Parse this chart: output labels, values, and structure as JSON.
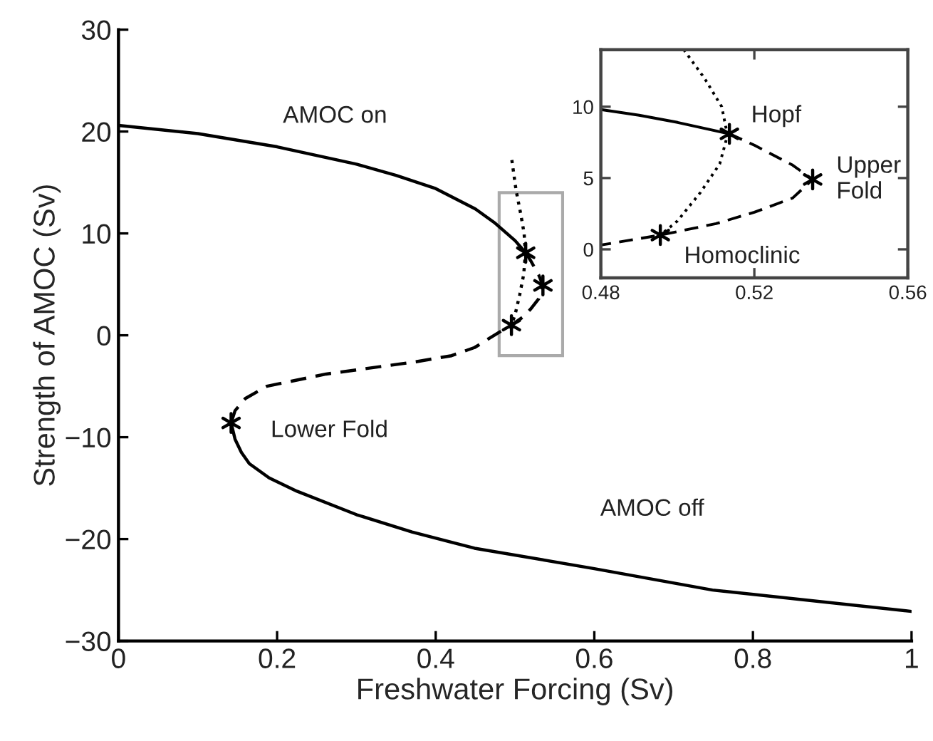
{
  "chart_data": [
    {
      "type": "line",
      "xlabel": "Freshwater Forcing (Sv)",
      "ylabel": "Strength of AMOC (Sv)",
      "xlim": [
        0,
        1
      ],
      "ylim": [
        -30,
        30
      ],
      "xticks": [
        0,
        0.2,
        0.4,
        0.6,
        0.8,
        1
      ],
      "yticks": [
        -30,
        -20,
        -10,
        0,
        10,
        20,
        30
      ],
      "grid": false,
      "series": [
        {
          "line_style": "solid",
          "color": "#000000",
          "x": [
            0,
            0.1,
            0.2,
            0.3,
            0.35,
            0.4,
            0.45,
            0.475,
            0.5,
            0.5135
          ],
          "values": [
            20.6,
            19.8,
            18.5,
            16.8,
            15.7,
            14.4,
            12.4,
            11.0,
            9.3,
            8.1
          ]
        },
        {
          "line_style": "dashed",
          "color": "#000000",
          "x": [
            0.5135,
            0.52,
            0.53,
            0.5352,
            0.53,
            0.52,
            0.51,
            0.4955,
            0.48,
            0.449,
            0.42,
            0.375,
            0.262,
            0.187,
            0.16,
            0.147,
            0.142
          ],
          "values": [
            8.1,
            7.3,
            5.9,
            4.9,
            3.6,
            2.6,
            1.8,
            1.0,
            0.3,
            -1.2,
            -2.0,
            -2.6,
            -3.8,
            -5.0,
            -6.2,
            -7.4,
            -8.6
          ]
        },
        {
          "line_style": "solid",
          "color": "#000000",
          "x": [
            0.142,
            0.147,
            0.155,
            0.165,
            0.19,
            0.225,
            0.3,
            0.37,
            0.449,
            0.6,
            0.749,
            1.0
          ],
          "values": [
            -8.6,
            -10.2,
            -11.5,
            -12.6,
            -14.0,
            -15.3,
            -17.6,
            -19.3,
            -20.9,
            -22.9,
            -25.0,
            -27.1
          ]
        },
        {
          "line_style": "dotted",
          "color": "#000000",
          "x": [
            0.496,
            0.5014,
            0.507,
            0.5115,
            0.513,
            0.511,
            0.506,
            0.5,
            0.4955
          ],
          "values": [
            17.2,
            14.2,
            12,
            10,
            8,
            6,
            4,
            2,
            1.0
          ]
        },
        {
          "type": "scatter",
          "marker": "cross",
          "color": "#000000",
          "x": [
            0.5135,
            0.5352,
            0.4955,
            0.142
          ],
          "values": [
            8.1,
            4.9,
            1.0,
            -8.6
          ]
        }
      ],
      "annotations": [
        {
          "text": "AMOC on",
          "x": 0.273,
          "y": 17.2
        },
        {
          "text": "Lower Fold",
          "x": 0.142,
          "y": -8.6
        },
        {
          "text": "AMOC off",
          "x": 0.673,
          "y": -23.9
        }
      ]
    },
    {
      "type": "line",
      "xlim": [
        0.48,
        0.56
      ],
      "ylim": [
        -2,
        14
      ],
      "xticks": [
        0.48,
        0.52,
        0.56
      ],
      "yticks": [
        0,
        5,
        10
      ],
      "grid": false,
      "series": [
        {
          "line_style": "solid",
          "color": "#000000",
          "x": [
            0.48,
            0.49,
            0.5,
            0.5135
          ],
          "values": [
            9.8,
            9.4,
            8.9,
            8.1
          ]
        },
        {
          "line_style": "dashed",
          "color": "#000000",
          "x": [
            0.5135,
            0.52,
            0.53,
            0.5352,
            0.53,
            0.52,
            0.51,
            0.4955,
            0.48
          ],
          "values": [
            8.1,
            7.3,
            5.9,
            4.9,
            3.6,
            2.6,
            1.8,
            1.0,
            0.3
          ]
        },
        {
          "line_style": "dotted",
          "color": "#000000",
          "x": [
            0.5016,
            0.507,
            0.5115,
            0.513,
            0.511,
            0.506,
            0.5,
            0.4955
          ],
          "values": [
            14,
            12,
            10,
            8,
            6,
            4,
            2,
            1.0
          ]
        },
        {
          "type": "scatter",
          "marker": "cross",
          "color": "#000000",
          "x": [
            0.5135,
            0.5352,
            0.4955
          ],
          "values": [
            8.1,
            4.9,
            1.0
          ]
        }
      ],
      "annotations": [
        {
          "text": "Hopf",
          "x": 0.5135,
          "y": 8.1
        },
        {
          "text": "Upper\nFold",
          "x": 0.5352,
          "y": 4.9
        },
        {
          "text": "Homoclinic",
          "x": 0.4955,
          "y": 1.0
        }
      ]
    }
  ]
}
